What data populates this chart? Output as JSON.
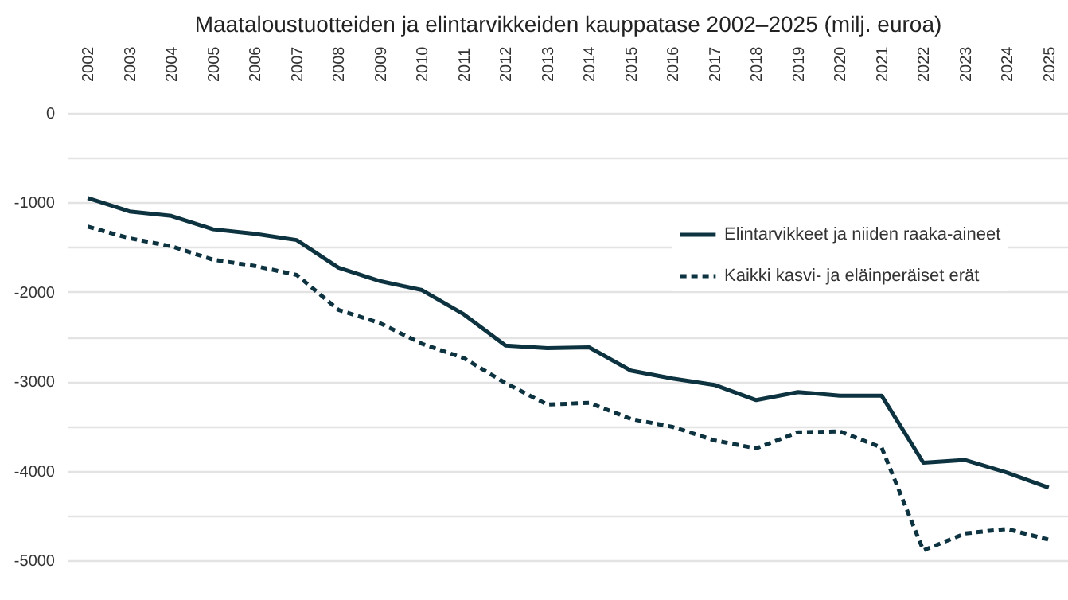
{
  "chart_data": {
    "type": "line",
    "title": "Maataloustuotteiden ja elintarvikkeiden kauppatase 2002–2025 (milj. euroa)",
    "categories": [
      "2002",
      "2003",
      "2004",
      "2005",
      "2006",
      "2007",
      "2008",
      "2009",
      "2010",
      "2011",
      "2012",
      "2013",
      "2014",
      "2015",
      "2016",
      "2017",
      "2018",
      "2019",
      "2020",
      "2021",
      "2022",
      "2023",
      "2024",
      "2025"
    ],
    "series": [
      {
        "name": "Elintarvikkeet ja niiden raaka-aineet",
        "color": "#0d3340",
        "line_style": "solid",
        "values": [
          -950,
          -1100,
          -1150,
          -1300,
          -1350,
          -1420,
          -1730,
          -1880,
          -1980,
          -2250,
          -2600,
          -2630,
          -2620,
          -2880,
          -2970,
          -3040,
          -3210,
          -3120,
          -3160,
          -3160,
          -3910,
          -3880,
          -4020,
          -4190
        ]
      },
      {
        "name": "Kaikki kasvi- ja eläinperäiset erät",
        "color": "#0d3340",
        "line_style": "dashed",
        "values": [
          -1270,
          -1400,
          -1490,
          -1640,
          -1710,
          -1810,
          -2200,
          -2350,
          -2580,
          -2740,
          -3020,
          -3260,
          -3240,
          -3420,
          -3510,
          -3660,
          -3750,
          -3570,
          -3560,
          -3740,
          -4890,
          -4700,
          -4650,
          -4770
        ]
      }
    ],
    "ylim": [
      -5000,
      0
    ],
    "yticks": [
      0,
      {
        "value": -500,
        "label": null
      },
      -1000,
      {
        "value": -1500,
        "label": null
      },
      -2000,
      {
        "value": -2500,
        "label": null
      },
      -3000,
      {
        "value": -3500,
        "label": null
      },
      -4000,
      {
        "value": -4500,
        "label": null
      },
      -5000
    ],
    "grid": "y",
    "legend": "right"
  }
}
